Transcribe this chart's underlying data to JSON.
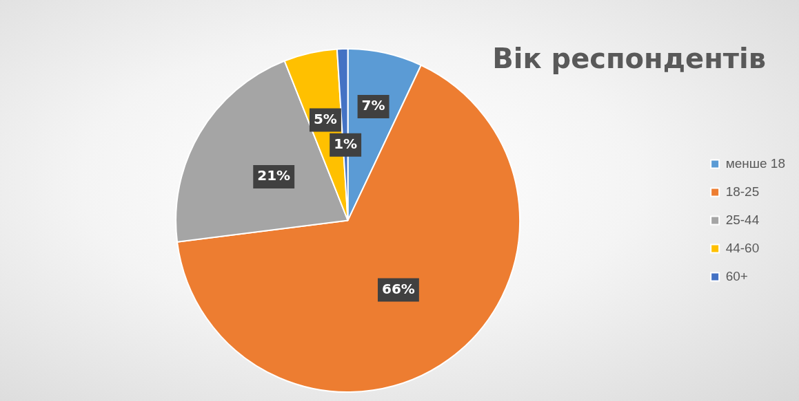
{
  "chart_data": {
    "type": "pie",
    "title": "Вік респондентів",
    "categories": [
      "менше 18",
      "18-25",
      "25-44",
      "44-60",
      "60+"
    ],
    "values": [
      7,
      66,
      21,
      5,
      1
    ],
    "value_labels": [
      "7%",
      "66%",
      "21%",
      "5%",
      "1%"
    ],
    "colors": [
      "#5b9bd5",
      "#ed7d31",
      "#a5a5a5",
      "#ffc000",
      "#4472c4"
    ],
    "legend": "right"
  }
}
